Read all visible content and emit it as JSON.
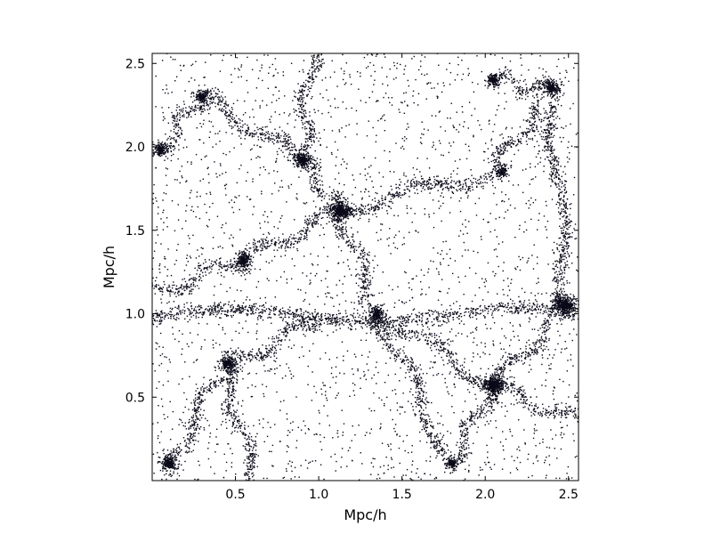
{
  "chart_data": {
    "type": "scatter",
    "title": "",
    "xlabel": "Mpc/h",
    "ylabel": "Mpc/h",
    "xlim": [
      0.0,
      2.56
    ],
    "ylim": [
      0.0,
      2.56
    ],
    "xticks": [
      0.5,
      1.0,
      1.5,
      2.0,
      2.5
    ],
    "yticks": [
      0.5,
      1.0,
      1.5,
      2.0,
      2.5
    ],
    "xtick_labels": [
      "0.5",
      "1.0",
      "1.5",
      "2.0",
      "2.5"
    ],
    "ytick_labels": [
      "0.5",
      "1.0",
      "1.5",
      "2.0",
      "2.5"
    ],
    "grid": false,
    "legend": "none",
    "point_color": "#0a0a19",
    "halos": [
      {
        "x": 1.13,
        "y": 1.62,
        "mass": 1.0
      },
      {
        "x": 2.48,
        "y": 1.05,
        "mass": 1.0
      },
      {
        "x": 2.05,
        "y": 0.57,
        "mass": 1.0
      },
      {
        "x": 0.9,
        "y": 1.92,
        "mass": 0.6
      },
      {
        "x": 0.1,
        "y": 0.1,
        "mass": 0.6
      },
      {
        "x": 0.55,
        "y": 1.32,
        "mass": 0.5
      },
      {
        "x": 0.45,
        "y": 0.7,
        "mass": 0.5
      },
      {
        "x": 2.4,
        "y": 2.35,
        "mass": 0.5
      },
      {
        "x": 2.05,
        "y": 2.4,
        "mass": 0.4
      },
      {
        "x": 0.3,
        "y": 2.3,
        "mass": 0.4
      },
      {
        "x": 1.35,
        "y": 1.0,
        "mass": 0.4
      },
      {
        "x": 0.05,
        "y": 1.98,
        "mass": 0.4
      },
      {
        "x": 2.1,
        "y": 1.85,
        "mass": 0.3
      },
      {
        "x": 1.8,
        "y": 0.1,
        "mass": 0.3
      }
    ],
    "filaments": [
      [
        0.0,
        0.98,
        2.56,
        1.0
      ],
      [
        1.13,
        1.62,
        0.9,
        1.92
      ],
      [
        0.9,
        1.92,
        0.3,
        2.3
      ],
      [
        1.13,
        1.62,
        2.05,
        1.85
      ],
      [
        2.05,
        1.85,
        2.4,
        2.35
      ],
      [
        1.13,
        1.62,
        0.55,
        1.32
      ],
      [
        0.55,
        1.32,
        0.0,
        1.12
      ],
      [
        1.13,
        1.62,
        1.35,
        1.0
      ],
      [
        2.05,
        0.57,
        2.48,
        1.05
      ],
      [
        2.05,
        0.57,
        1.35,
        1.0
      ],
      [
        0.45,
        0.7,
        1.0,
        0.95
      ],
      [
        0.45,
        0.7,
        0.1,
        0.1
      ],
      [
        2.05,
        0.57,
        2.56,
        0.35
      ],
      [
        2.05,
        0.57,
        1.8,
        0.1
      ],
      [
        2.48,
        1.05,
        2.4,
        2.35
      ],
      [
        0.3,
        2.3,
        0.05,
        1.98
      ],
      [
        1.35,
        1.0,
        1.8,
        0.1
      ],
      [
        0.9,
        1.92,
        0.95,
        2.56
      ],
      [
        2.05,
        2.4,
        2.4,
        2.35
      ],
      [
        0.45,
        0.7,
        0.6,
        0.0
      ]
    ]
  }
}
